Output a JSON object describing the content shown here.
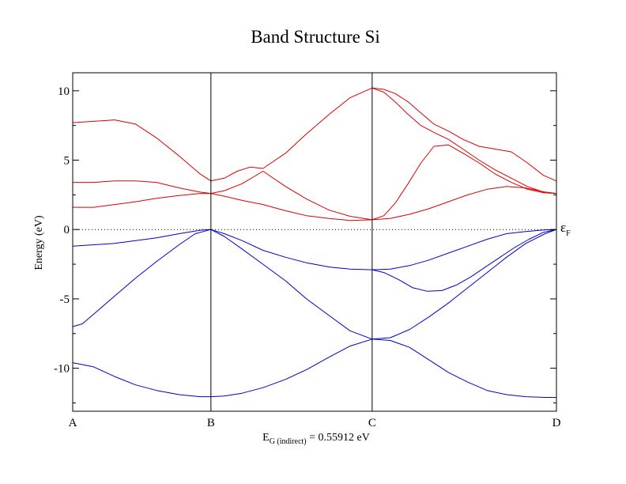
{
  "chart_data": {
    "type": "line",
    "title": "Band Structure Si",
    "ylabel": "Energy (eV)",
    "ylim": [
      -13.1,
      11.3
    ],
    "xlim": [
      0,
      3
    ],
    "y_ticks": [
      10,
      5,
      0,
      -5,
      -10
    ],
    "y_tick_labels": [
      "10",
      "5",
      "0",
      "-5",
      "-10"
    ],
    "k_points": [
      {
        "label": "A",
        "x": 0
      },
      {
        "label": "B",
        "x": 0.8571
      },
      {
        "label": "C",
        "x": 1.8571
      },
      {
        "label": "D",
        "x": 3.0
      }
    ],
    "fermi_level": {
      "energy": 0,
      "label": "ε",
      "sub": "F",
      "line_style": "dotted"
    },
    "band_gap_annotation": {
      "prefix": "E",
      "sub": "G (indirect)",
      "suffix": " = 0.55912 eV"
    },
    "grid": false,
    "legend": "none",
    "colors": {
      "valence": "#0000cc",
      "conduction": "#dd0000",
      "axes": "#000000"
    },
    "series": [
      {
        "band": "valence",
        "x": [
          0,
          0.13,
          0.26,
          0.39,
          0.52,
          0.66,
          0.79,
          0.857,
          0.94,
          1.05,
          1.18,
          1.32,
          1.45,
          1.59,
          1.72,
          1.857,
          1.97,
          2.09,
          2.21,
          2.33,
          2.45,
          2.57,
          2.69,
          2.81,
          2.93,
          3.0
        ],
        "y": [
          -9.6,
          -9.9,
          -10.6,
          -11.2,
          -11.6,
          -11.9,
          -12.05,
          -12.05,
          -12.0,
          -11.8,
          -11.4,
          -10.8,
          -10.1,
          -9.2,
          -8.4,
          -7.9,
          -8.0,
          -8.5,
          -9.4,
          -10.3,
          -11.0,
          -11.6,
          -11.9,
          -12.05,
          -12.1,
          -12.1
        ]
      },
      {
        "band": "valence",
        "x": [
          0,
          0.06,
          0.15,
          0.26,
          0.39,
          0.52,
          0.66,
          0.76,
          0.857,
          0.94,
          1.05,
          1.18,
          1.32,
          1.45,
          1.59,
          1.72,
          1.857,
          1.97,
          2.09,
          2.21,
          2.33,
          2.45,
          2.57,
          2.69,
          2.81,
          2.93,
          3.0
        ],
        "y": [
          -7.0,
          -6.8,
          -5.9,
          -4.8,
          -3.5,
          -2.3,
          -1.1,
          -0.3,
          0.0,
          -0.5,
          -1.4,
          -2.5,
          -3.7,
          -5.0,
          -6.2,
          -7.3,
          -7.9,
          -7.8,
          -7.2,
          -6.3,
          -5.3,
          -4.2,
          -3.1,
          -2.0,
          -1.0,
          -0.3,
          0.0
        ]
      },
      {
        "band": "valence",
        "x": [
          0,
          0.13,
          0.26,
          0.39,
          0.52,
          0.66,
          0.79,
          0.857,
          0.94,
          1.05,
          1.18,
          1.32,
          1.45,
          1.59,
          1.72,
          1.857,
          1.97,
          2.09,
          2.21,
          2.33,
          2.45,
          2.57,
          2.69,
          2.81,
          2.93,
          3.0
        ],
        "y": [
          -1.2,
          -1.1,
          -1.0,
          -0.8,
          -0.6,
          -0.3,
          -0.05,
          0.0,
          -0.3,
          -0.8,
          -1.5,
          -2.0,
          -2.4,
          -2.7,
          -2.85,
          -2.9,
          -2.85,
          -2.6,
          -2.2,
          -1.7,
          -1.2,
          -0.7,
          -0.3,
          -0.15,
          -0.02,
          0.0
        ]
      },
      {
        "band": "valence",
        "x": [
          1.857,
          1.93,
          2.02,
          2.11,
          2.2,
          2.29,
          2.38,
          2.47,
          2.56,
          2.65,
          2.74,
          2.83,
          2.92,
          3.0
        ],
        "y": [
          -2.9,
          -3.1,
          -3.6,
          -4.2,
          -4.45,
          -4.4,
          -4.0,
          -3.4,
          -2.7,
          -2.0,
          -1.3,
          -0.7,
          -0.2,
          0.0
        ]
      },
      {
        "band": "conduction",
        "x": [
          0,
          0.13,
          0.26,
          0.39,
          0.52,
          0.66,
          0.79,
          0.857,
          0.94,
          1.05,
          1.18,
          1.32,
          1.45,
          1.59,
          1.72,
          1.857,
          1.97,
          2.09,
          2.21,
          2.33,
          2.45,
          2.57,
          2.69,
          2.81,
          2.93,
          3.0
        ],
        "y": [
          1.6,
          1.6,
          1.8,
          2.0,
          2.25,
          2.45,
          2.6,
          2.6,
          2.4,
          2.1,
          1.8,
          1.35,
          1.0,
          0.8,
          0.65,
          0.7,
          0.8,
          1.1,
          1.5,
          2.0,
          2.5,
          2.9,
          3.1,
          3.0,
          2.7,
          2.6
        ]
      },
      {
        "band": "conduction",
        "x": [
          0,
          0.13,
          0.26,
          0.39,
          0.52,
          0.66,
          0.79,
          0.857,
          0.94,
          1.05,
          1.18,
          1.32,
          1.45,
          1.59,
          1.72,
          1.857,
          1.93,
          2.0,
          2.08,
          2.16,
          2.24,
          2.33,
          2.42,
          2.52,
          2.62,
          2.72,
          2.82,
          2.92,
          3.0
        ],
        "y": [
          3.4,
          3.4,
          3.5,
          3.5,
          3.4,
          3.0,
          2.7,
          2.6,
          2.8,
          3.3,
          4.2,
          3.1,
          2.2,
          1.4,
          0.95,
          0.7,
          1.0,
          1.9,
          3.3,
          4.8,
          6.0,
          6.1,
          5.5,
          4.8,
          4.0,
          3.4,
          2.9,
          2.65,
          2.6
        ]
      },
      {
        "band": "conduction",
        "x": [
          0,
          0.13,
          0.26,
          0.39,
          0.52,
          0.66,
          0.79,
          0.857,
          0.94,
          1.02,
          1.1,
          1.18,
          1.32,
          1.45,
          1.59,
          1.72,
          1.857,
          1.93,
          2.0,
          2.08,
          2.16,
          2.24,
          2.33,
          2.42,
          2.52,
          2.62,
          2.72,
          2.82,
          2.92,
          3.0
        ],
        "y": [
          7.7,
          7.8,
          7.9,
          7.6,
          6.6,
          5.3,
          4.0,
          3.5,
          3.7,
          4.2,
          4.5,
          4.4,
          5.5,
          6.9,
          8.3,
          9.5,
          10.2,
          9.9,
          9.2,
          8.3,
          7.5,
          7.0,
          6.5,
          5.8,
          5.0,
          4.3,
          3.7,
          3.1,
          2.7,
          2.6
        ]
      },
      {
        "band": "conduction",
        "x": [
          1.857,
          1.93,
          2.0,
          2.08,
          2.16,
          2.24,
          2.33,
          2.42,
          2.52,
          2.62,
          2.72,
          2.82,
          2.92,
          3.0
        ],
        "y": [
          10.2,
          10.1,
          9.8,
          9.2,
          8.4,
          7.6,
          7.1,
          6.5,
          6.0,
          5.8,
          5.6,
          4.8,
          3.9,
          3.5
        ]
      }
    ]
  }
}
